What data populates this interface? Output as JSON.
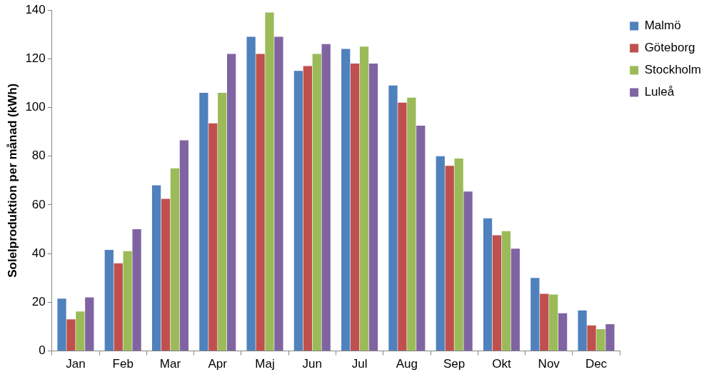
{
  "chart_data": {
    "type": "bar",
    "y_label": "Solelproduktion per månad (kWh)",
    "categories": [
      "Jan",
      "Feb",
      "Mar",
      "Apr",
      "Maj",
      "Jun",
      "Jul",
      "Aug",
      "Sep",
      "Okt",
      "Nov",
      "Dec"
    ],
    "series": [
      {
        "name": "Malmö",
        "color": "#4f81bd",
        "values": [
          21.5,
          41.5,
          68,
          106,
          129,
          115,
          124,
          109,
          80,
          54.5,
          30,
          16.7
        ]
      },
      {
        "name": "Göteborg",
        "color": "#c0504d",
        "values": [
          13,
          36,
          62.5,
          93.5,
          122,
          117,
          118,
          102,
          76,
          47.5,
          23.5,
          10.5
        ]
      },
      {
        "name": "Stockholm",
        "color": "#9bbb59",
        "values": [
          16.2,
          41,
          75,
          106,
          139,
          122,
          125,
          104,
          79,
          49.2,
          23.2,
          9
        ]
      },
      {
        "name": "Luleå",
        "color": "#8064a2",
        "values": [
          22,
          50,
          86.5,
          122,
          129,
          126,
          118,
          92.5,
          65.5,
          42,
          15.5,
          11
        ]
      }
    ],
    "ylim": [
      0,
      140
    ],
    "yticks": [
      0,
      20,
      40,
      60,
      80,
      100,
      120,
      140
    ],
    "grid": false,
    "legend": "upper right"
  }
}
